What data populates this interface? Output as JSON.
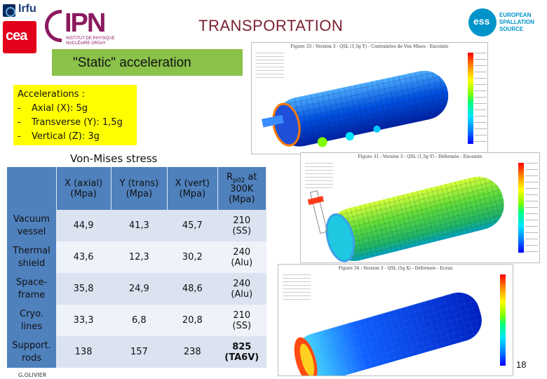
{
  "logos": {
    "irfu": "Irfu",
    "cea": "cea",
    "ipn": "IPN",
    "ipn_sub": "INSTITUT DE PHYSIQUE NUCLÉAIRE ORSAY",
    "ess_mark": "ess",
    "ess_line1": "EUROPEAN",
    "ess_line2": "SPALLATION",
    "ess_line3": "SOURCE"
  },
  "title": "TRANSPORTATION",
  "banner": "\"Static\" acceleration",
  "accelerations": {
    "heading": "Accelerations :",
    "items": [
      {
        "dash": "-",
        "text": "Axial (X): 5g"
      },
      {
        "dash": "-",
        "text": "Transverse (Y): 1,5g"
      },
      {
        "dash": "-",
        "text": "Vertical (Z): 3g"
      }
    ]
  },
  "table_caption": "Von-Mises stress",
  "table": {
    "headers": [
      {
        "line1": "X (axial)",
        "line2": "(Mpa)"
      },
      {
        "line1": "Y (trans)",
        "line2": "(Mpa)"
      },
      {
        "line1": "X (vert)",
        "line2": "(Mpa)"
      }
    ],
    "rp_header": {
      "r": "R",
      "sub": "p02",
      "suffix": " at",
      "line2": "300K",
      "line3": "(Mpa)"
    },
    "rows": [
      {
        "name1": "Vacuum",
        "name2": "vessel",
        "x": "44,9",
        "y": "41,3",
        "z": "45,7",
        "rp1": "210",
        "rp2": "(SS)"
      },
      {
        "name1": "Thermal",
        "name2": "shield",
        "x": "43,6",
        "y": "12,3",
        "z": "30,2",
        "rp1": "240",
        "rp2": "(Alu)"
      },
      {
        "name1": "Space-",
        "name2": "frame",
        "x": "35,8",
        "y": "24,9",
        "z": "48,6",
        "rp1": "240",
        "rp2": "(Alu)"
      },
      {
        "name1": "Cryo.",
        "name2": "lines",
        "x": "33,3",
        "y": "6,8",
        "z": "20,8",
        "rp1": "210",
        "rp2": "(SS)"
      },
      {
        "name1": "Support.",
        "name2": "rods",
        "x": "138",
        "y": "157",
        "z": "238",
        "rp1": "825",
        "rp2": "(TA6V)",
        "bold_rp": true
      }
    ]
  },
  "figures": {
    "fig1_caption": "Figure 33 : Version 3 - QSL (1,5g Y) - Contraintes de Von Mises - Enceinte",
    "fig2_caption": "Figure 31 : Version 3 - QSL (1,5g Y) - Déformée - Enceinte",
    "fig3_caption": "Figure 34 : Version 3 - QSL (5g X) - Déformée - Ecran"
  },
  "page_number": "18",
  "author": "G.OLIVIER"
}
